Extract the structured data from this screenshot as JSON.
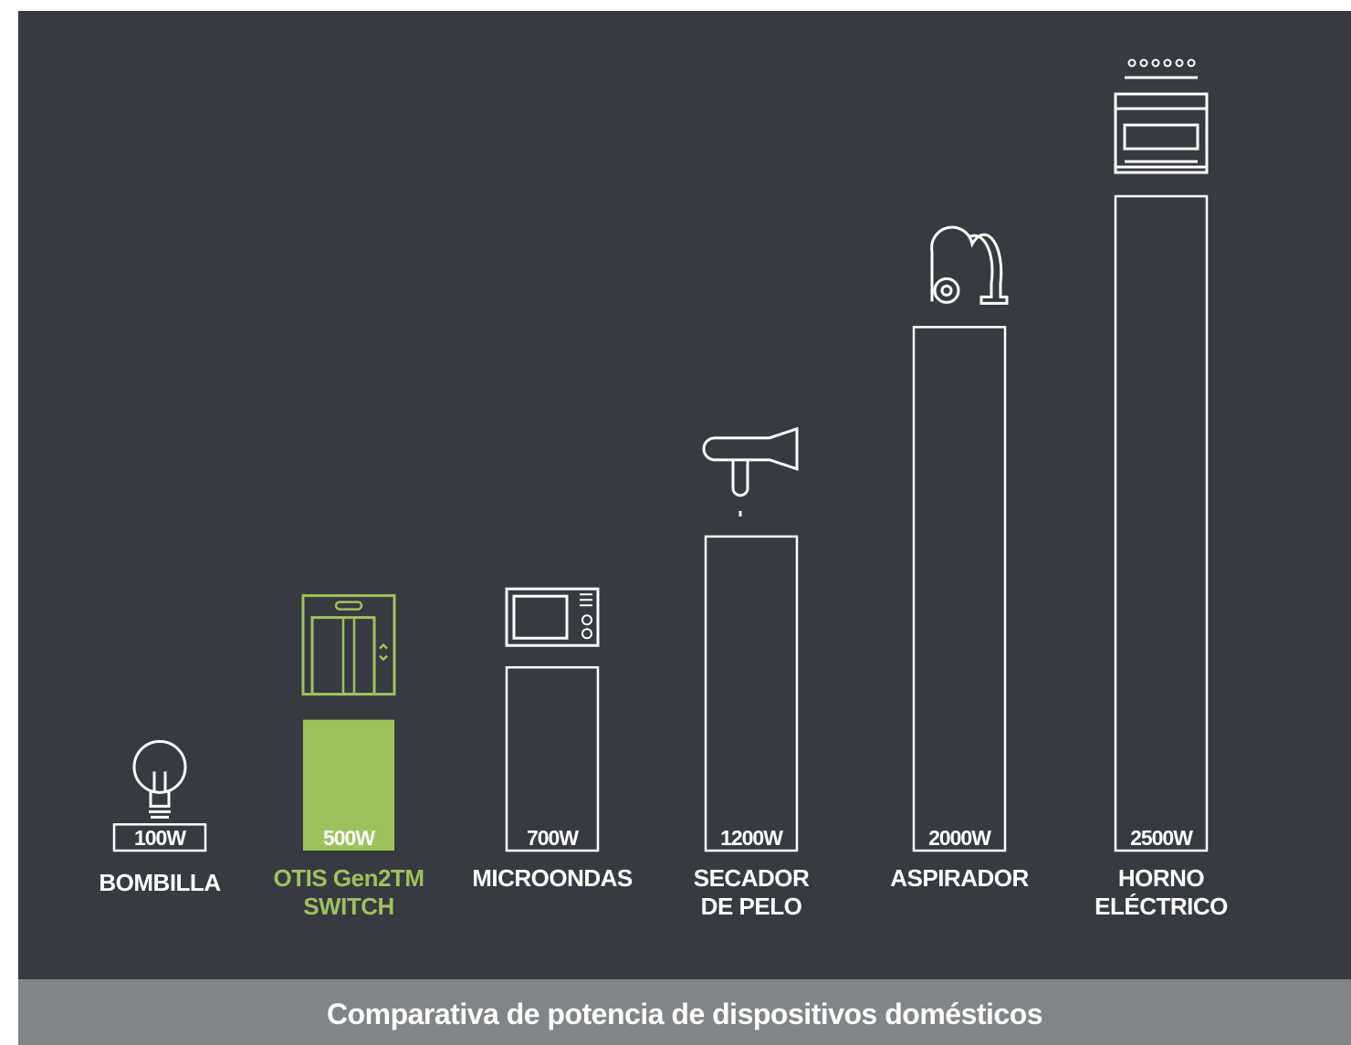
{
  "chart_data": {
    "type": "bar",
    "title": "Comparativa de potencia de dispositivos domésticos",
    "categories": [
      "BOMBILLA",
      "OTIS Gen2TM\nSWITCH",
      "MICROONDAS",
      "SECADOR\nDE PELO",
      "ASPIRADOR",
      "HORNO\nELÉCTRICO"
    ],
    "values": [
      100,
      500,
      700,
      1200,
      2000,
      2500
    ],
    "value_labels": [
      "100W",
      "500W",
      "700W",
      "1200W",
      "2000W",
      "2500W"
    ],
    "colors": [
      "#ffffff",
      "#9dc25c",
      "#ffffff",
      "#ffffff",
      "#ffffff",
      "#ffffff"
    ],
    "ylim": [
      0,
      2500
    ]
  }
}
